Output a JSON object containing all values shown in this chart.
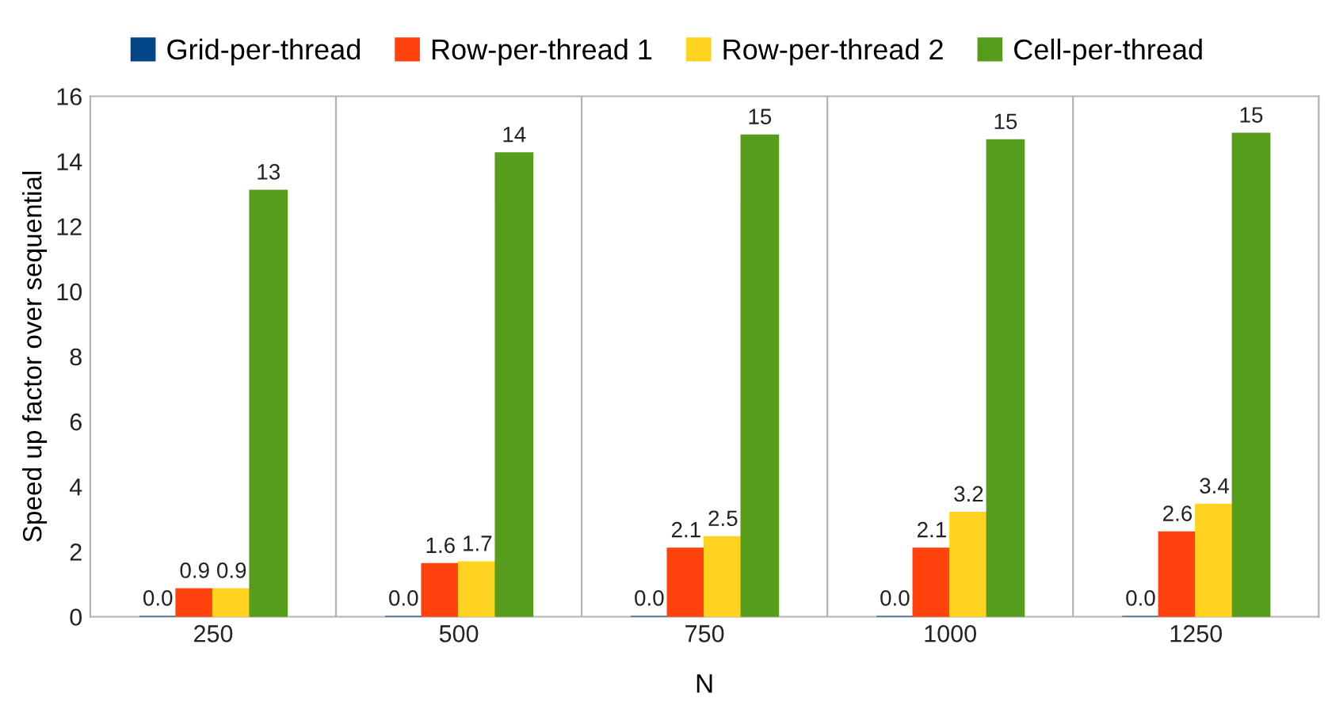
{
  "chart_data": {
    "type": "bar",
    "xlabel": "N",
    "ylabel": "Speed up factor over sequential",
    "categories": [
      "250",
      "500",
      "750",
      "1000",
      "1250"
    ],
    "series": [
      {
        "name": "Grid-per-thread",
        "color": "#004586",
        "values": [
          0,
          0,
          0,
          0,
          0
        ],
        "value_labels": [
          "0.0",
          "0.0",
          "0.0",
          "0.0",
          "0.0"
        ]
      },
      {
        "name": "Row-per-thread 1",
        "color": "#ff420e",
        "values": [
          0.85,
          1.62,
          2.1,
          2.1,
          2.6
        ],
        "value_labels": [
          "0.9",
          "1.6",
          "2.1",
          "2.1",
          "2.6"
        ]
      },
      {
        "name": "Row-per-thread 2",
        "color": "#ffd320",
        "values": [
          0.85,
          1.68,
          2.45,
          3.2,
          3.45
        ],
        "value_labels": [
          "0.9",
          "1.7",
          "2.5",
          "3.2",
          "3.4"
        ]
      },
      {
        "name": "Cell-per-thread",
        "color": "#579d1c",
        "values": [
          13.1,
          14.25,
          14.8,
          14.65,
          14.85
        ],
        "value_labels": [
          "13",
          "14",
          "15",
          "15",
          "15"
        ]
      }
    ],
    "ylim": [
      0,
      16
    ],
    "yticks": [
      0,
      2,
      4,
      6,
      8,
      10,
      12,
      14,
      16
    ],
    "grid": "x",
    "legend": "top"
  }
}
